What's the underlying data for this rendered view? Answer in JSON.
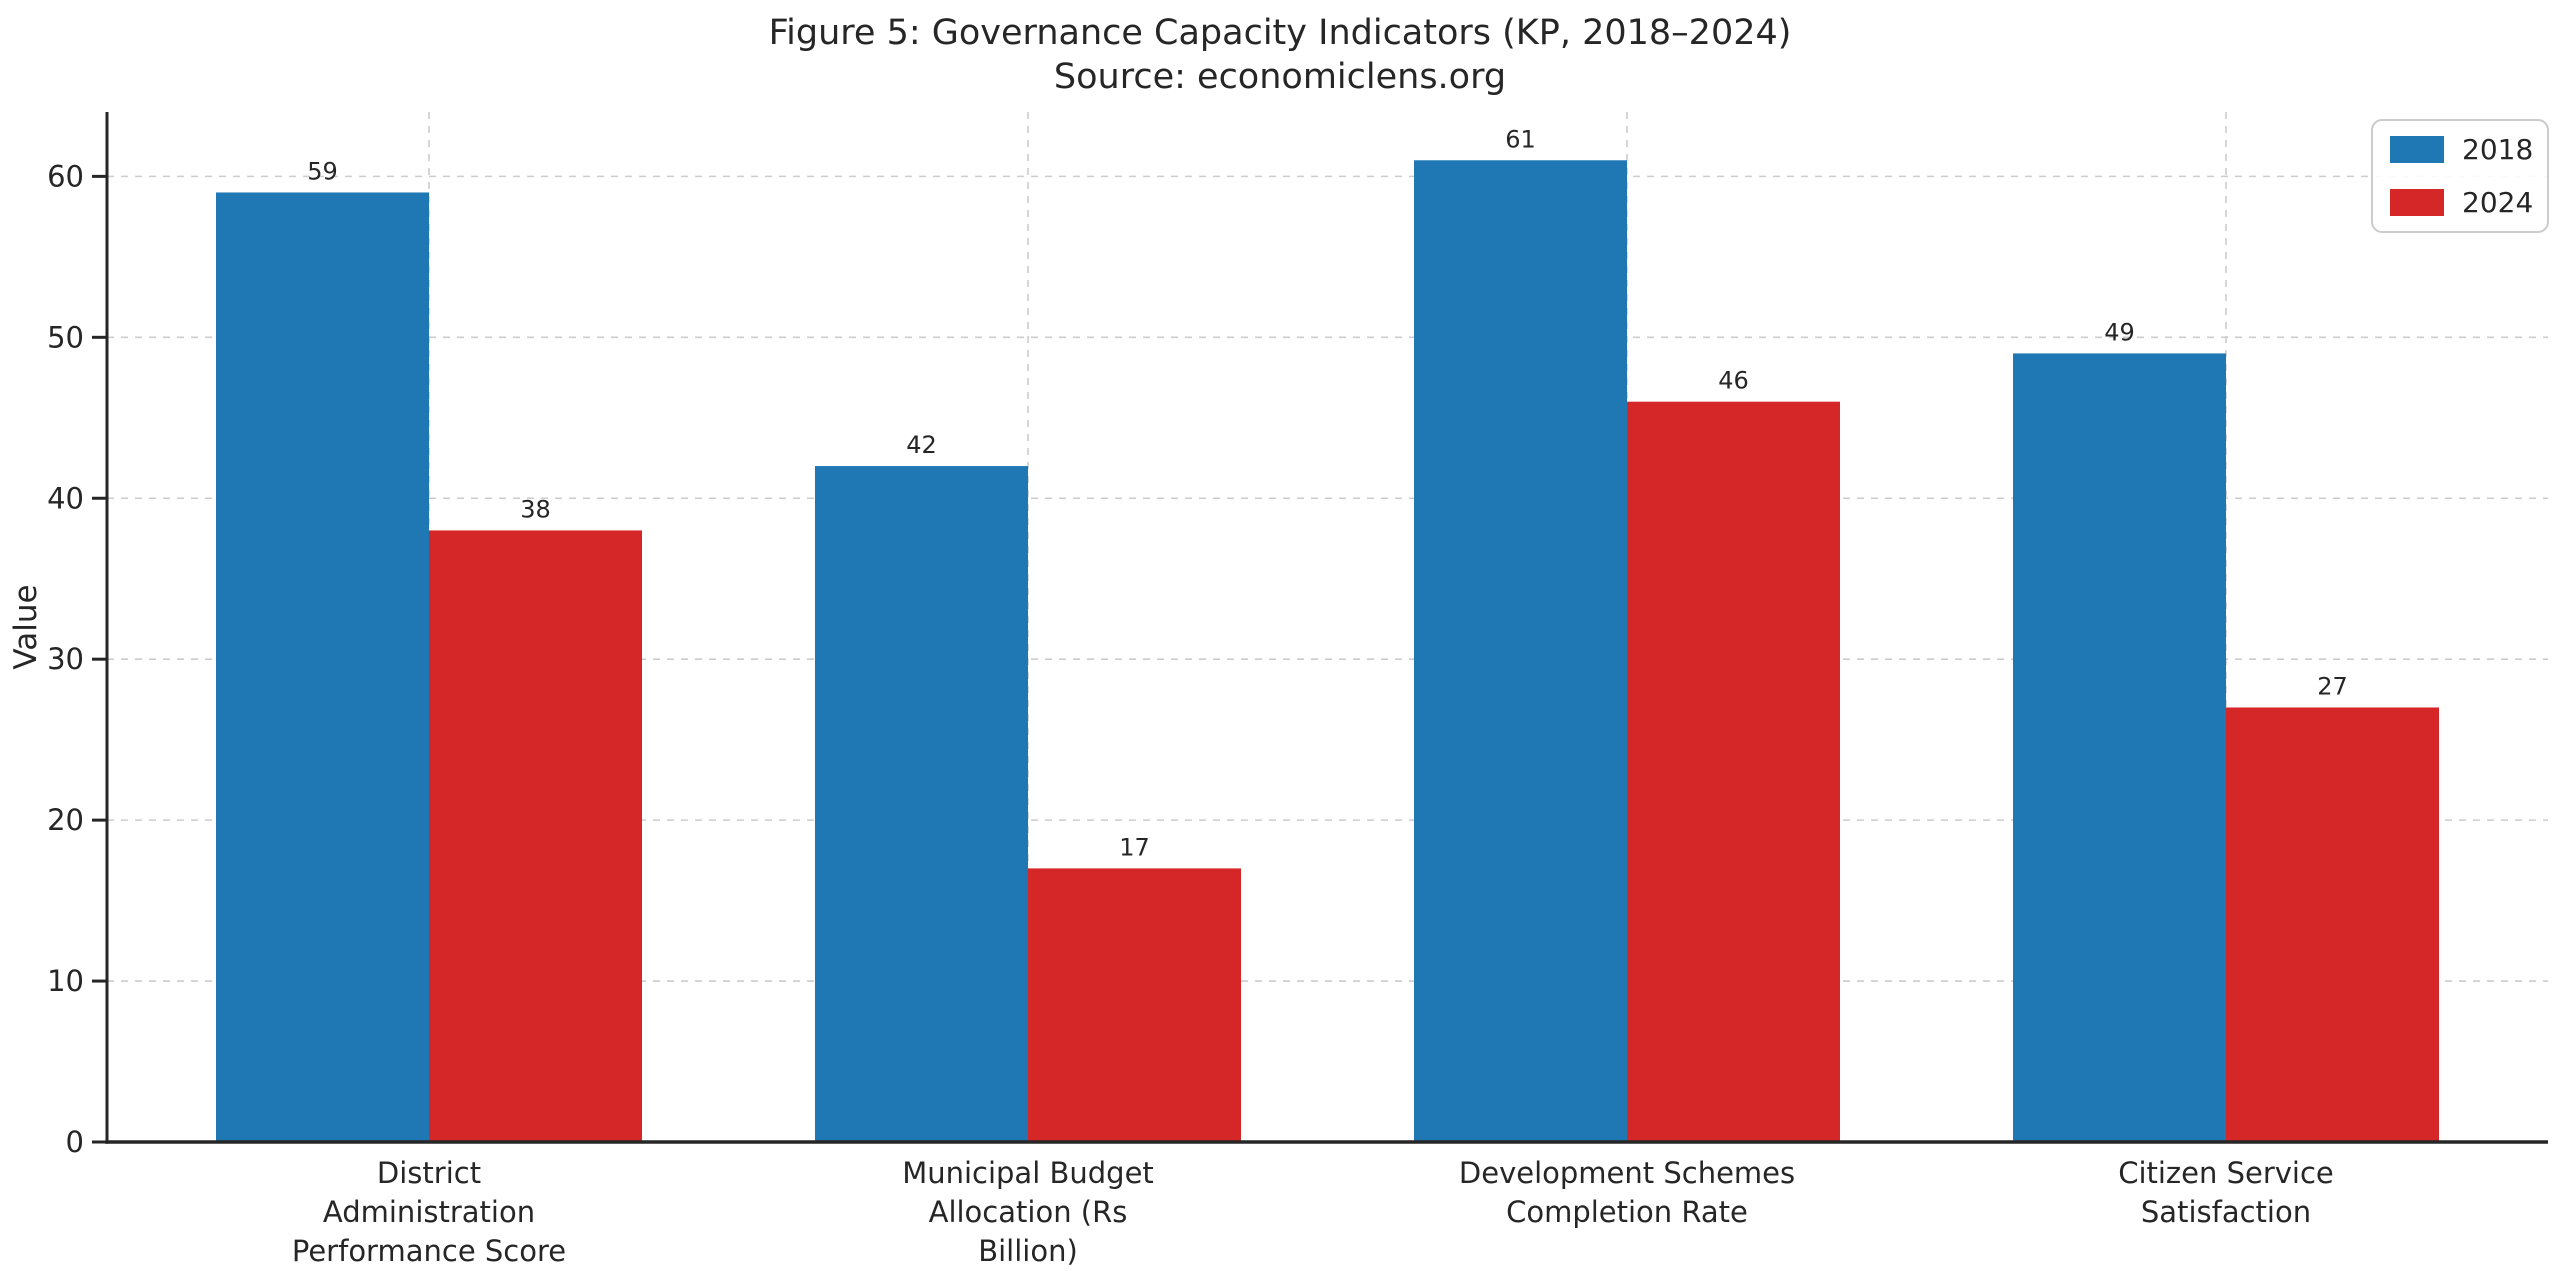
{
  "chart_data": {
    "type": "bar",
    "title": "Figure 5: Governance Capacity Indicators (KP, 2018–2024)",
    "subtitle": "Source: economiclens.org",
    "categories": [
      "District Administration Performance Score",
      "Municipal Budget Allocation (Rs Billion)",
      "Development Schemes Completion Rate",
      "Citizen Service Satisfaction"
    ],
    "category_label_lines": [
      [
        "District",
        "Administration",
        "Performance Score"
      ],
      [
        "Municipal Budget",
        "Allocation (Rs",
        "Billion)"
      ],
      [
        "Development Schemes",
        "Completion Rate"
      ],
      [
        "Citizen Service",
        "Satisfaction"
      ]
    ],
    "series": [
      {
        "name": "2018",
        "color": "#1f77b4",
        "values": [
          59,
          42,
          61,
          49
        ]
      },
      {
        "name": "2024",
        "color": "#d62728",
        "values": [
          38,
          17,
          46,
          27
        ]
      }
    ],
    "xlabel": "",
    "ylabel": "Value",
    "yticks": [
      0,
      10,
      20,
      30,
      40,
      50,
      60
    ],
    "ylim": [
      0,
      64
    ],
    "bar_value_labels": true,
    "grid": {
      "horizontal": "dashed",
      "vertical": "dashed at category centers"
    },
    "legend_position": "upper right",
    "colors": {
      "text": "#262626",
      "grid": "#cccccc",
      "spine": "#262626",
      "background": "#ffffff"
    }
  }
}
